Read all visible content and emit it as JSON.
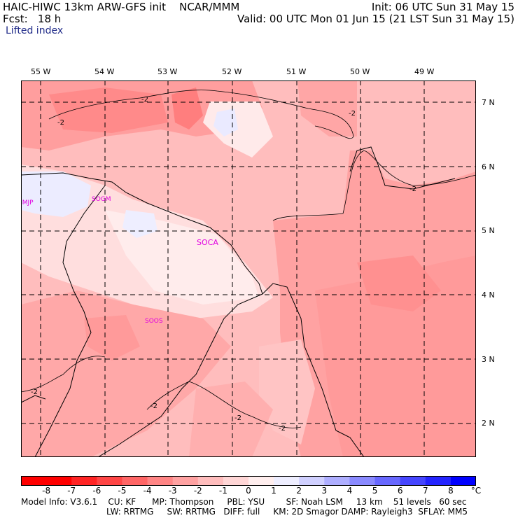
{
  "header": {
    "left_line1": "HAIC-HIWC 13km ARW-GFS init    NCAR/MMM",
    "left_line2": "Fcst:   18 h",
    "field": "Lifted index",
    "right_line1": "Init: 06 UTC Sun 31 May 15",
    "right_line2": "Valid: 00 UTC Mon 01 Jun 15 (21 LST Sun 31 May 15)"
  },
  "map": {
    "lon_labels": [
      "55 W",
      "54 W",
      "53 W",
      "52 W",
      "51 W",
      "50 W",
      "49 W"
    ],
    "lat_labels": [
      "7 N",
      "6 N",
      "5 N",
      "4 N",
      "3 N",
      "2 N"
    ],
    "stations": [
      "SMJP",
      "SOGM",
      "SOCA",
      "SOOS"
    ],
    "contour_labels": [
      "-2",
      "-2",
      "-2",
      "-2",
      "-2",
      "-2",
      "-2",
      "-2"
    ]
  },
  "colorbar": {
    "unit": "°C",
    "labels": [
      "-8",
      "-7",
      "-6",
      "-5",
      "-4",
      "-3",
      "-2",
      "-1",
      "0",
      "1",
      "2",
      "3",
      "4",
      "5",
      "6",
      "7",
      "8"
    ],
    "colors": [
      "#ff0000",
      "#ff2424",
      "#ff4646",
      "#ff6666",
      "#ff8585",
      "#ffa2a2",
      "#ffbdbd",
      "#ffd6d6",
      "#ffeeee",
      "#eeeeff",
      "#d0d0ff",
      "#aeaeff",
      "#8a8aff",
      "#6868ff",
      "#4646ff",
      "#2424ff",
      "#0000ff"
    ]
  },
  "footer": {
    "line1": "Model Info: V3.6.1    CU: KF      MP: Thompson     PBL: YSU        SF: Noah LSM     13 km    51 levels   60 sec",
    "line2": "LW: RRTMG     SW: RRTMG   DIFF: full     KM: 2D Smagor DAMP: Rayleigh3  SFLAY: MM5"
  }
}
